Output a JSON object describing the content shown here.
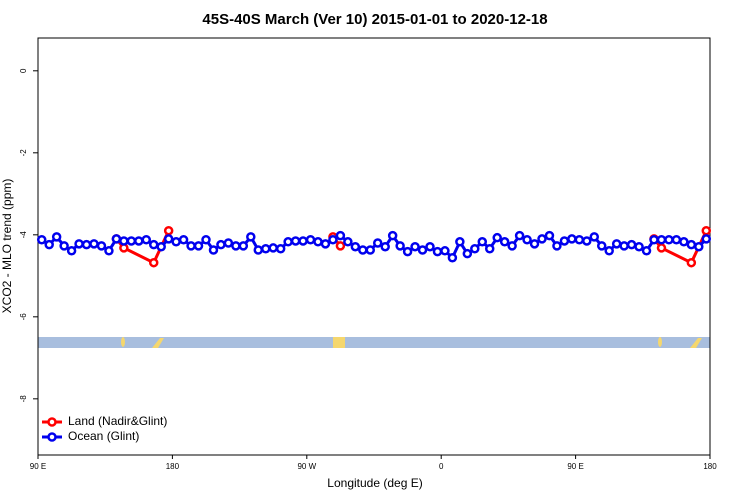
{
  "chart_data": {
    "type": "line",
    "title": "45S-40S March (Ver 10)   2015-01-01 to 2020-12-18",
    "xlabel": "Longitude (deg E)",
    "ylabel": "XCO2 - MLO trend (ppm)",
    "xlim": [
      90,
      540
    ],
    "xticks": [
      {
        "value": 90,
        "label": "90 E"
      },
      {
        "value": 180,
        "label": "180"
      },
      {
        "value": 270,
        "label": "90 W"
      },
      {
        "value": 360,
        "label": "0"
      },
      {
        "value": 450,
        "label": "90 E"
      },
      {
        "value": 540,
        "label": "180"
      }
    ],
    "ylim": [
      -9.37,
      0.8
    ],
    "yticks": [
      0,
      -2,
      -4,
      -6,
      -8
    ],
    "legend": "bottom-left",
    "series": [
      {
        "name": "Land (Nadir&Glint)",
        "color": "#ff0000",
        "x": [
          142.5,
          147.5,
          167.5,
          177.5,
          null,
          287.5,
          292.5,
          null,
          502.5,
          507.5,
          527.5,
          537.5
        ],
        "values": [
          -4.1,
          -4.32,
          -4.68,
          -3.9,
          null,
          -4.05,
          -4.27,
          null,
          -4.1,
          -4.32,
          -4.68,
          -3.9
        ]
      },
      {
        "name": "Ocean (Glint)",
        "color": "#0000ee",
        "x": [
          92.5,
          97.5,
          102.5,
          107.5,
          112.5,
          117.5,
          122.5,
          127.5,
          132.5,
          137.5,
          142.5,
          147.5,
          152.5,
          157.5,
          162.5,
          167.5,
          172.5,
          177.5,
          182.5,
          187.5,
          192.5,
          197.5,
          202.5,
          207.5,
          212.5,
          217.5,
          222.5,
          227.5,
          232.5,
          237.5,
          242.5,
          247.5,
          252.5,
          257.5,
          262.5,
          267.5,
          272.5,
          277.5,
          282.5,
          287.5,
          292.5,
          297.5,
          302.5,
          307.5,
          312.5,
          317.5,
          322.5,
          327.5,
          332.5,
          337.5,
          342.5,
          347.5,
          352.5,
          357.5,
          362.5,
          367.5,
          372.5,
          377.5,
          382.5,
          387.5,
          392.5,
          397.5,
          402.5,
          407.5,
          412.5,
          417.5,
          422.5,
          427.5,
          432.5,
          437.5,
          442.5,
          447.5,
          452.5,
          457.5,
          462.5,
          467.5,
          472.5,
          477.5,
          482.5,
          487.5,
          492.5,
          497.5,
          502.5,
          507.5,
          512.5,
          517.5,
          522.5,
          527.5,
          532.5,
          537.5
        ],
        "values": [
          -4.12,
          -4.24,
          -4.05,
          -4.27,
          -4.39,
          -4.22,
          -4.24,
          -4.22,
          -4.27,
          -4.39,
          -4.1,
          -4.15,
          -4.15,
          -4.15,
          -4.12,
          -4.24,
          -4.29,
          -4.1,
          -4.17,
          -4.12,
          -4.27,
          -4.27,
          -4.12,
          -4.37,
          -4.24,
          -4.2,
          -4.27,
          -4.27,
          -4.05,
          -4.37,
          -4.34,
          -4.32,
          -4.34,
          -4.17,
          -4.15,
          -4.15,
          -4.12,
          -4.17,
          -4.22,
          -4.12,
          -4.02,
          -4.17,
          -4.29,
          -4.37,
          -4.37,
          -4.2,
          -4.29,
          -4.02,
          -4.27,
          -4.41,
          -4.29,
          -4.37,
          -4.29,
          -4.41,
          -4.39,
          -4.56,
          -4.17,
          -4.46,
          -4.34,
          -4.17,
          -4.34,
          -4.07,
          -4.17,
          -4.27,
          -4.02,
          -4.12,
          -4.22,
          -4.1,
          -4.02,
          -4.27,
          -4.15,
          -4.1,
          -4.12,
          -4.15,
          -4.05,
          -4.27,
          -4.39,
          -4.22,
          -4.27,
          -4.24,
          -4.29,
          -4.39,
          -4.12,
          -4.12,
          -4.12,
          -4.12,
          -4.17,
          -4.24,
          -4.29,
          -4.1
        ]
      }
    ]
  }
}
